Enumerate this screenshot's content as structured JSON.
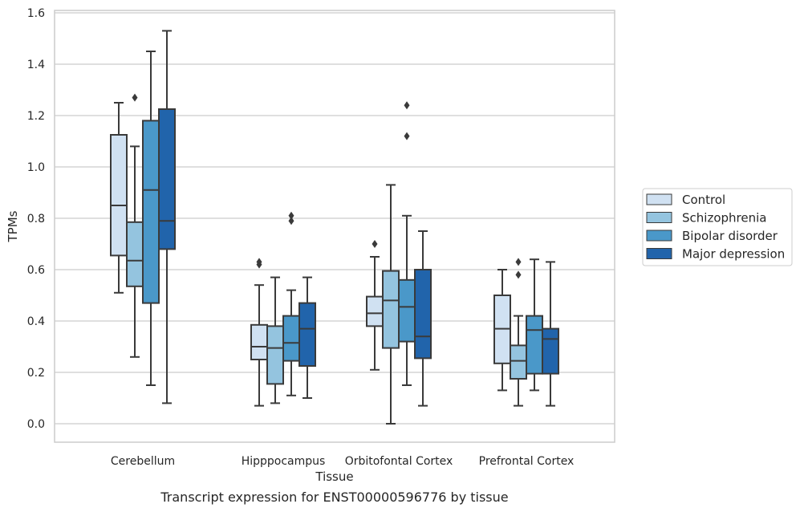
{
  "chart_data": {
    "type": "box",
    "title": "",
    "caption": "Transcript expression for ENST00000596776 by tissue",
    "xlabel": "Tissue",
    "ylabel": "TPMs",
    "ylim": [
      -0.07,
      1.61
    ],
    "yticks": [
      0.0,
      0.2,
      0.4,
      0.6,
      0.8,
      1.0,
      1.2,
      1.4,
      1.6
    ],
    "ytick_labels": [
      "0.0",
      "0.2",
      "0.4",
      "0.6",
      "0.8",
      "1.0",
      "1.2",
      "1.4",
      "1.6"
    ],
    "grid": "horizontal",
    "legend_position": "right",
    "categories": [
      "Cerebellum",
      "Hipppocampus",
      "Orbitofontal Cortex",
      "Prefrontal Cortex"
    ],
    "series": [
      {
        "name": "Control",
        "color": "#d0e1f2",
        "boxes": [
          {
            "whisker_low": 0.51,
            "q1": 0.655,
            "median": 0.85,
            "q3": 1.125,
            "whisker_high": 1.25,
            "outliers": []
          },
          {
            "whisker_low": 0.07,
            "q1": 0.25,
            "median": 0.3,
            "q3": 0.385,
            "whisker_high": 0.54,
            "outliers": [
              0.62,
              0.63
            ]
          },
          {
            "whisker_low": 0.21,
            "q1": 0.38,
            "median": 0.43,
            "q3": 0.495,
            "whisker_high": 0.65,
            "outliers": [
              0.7
            ]
          },
          {
            "whisker_low": 0.13,
            "q1": 0.235,
            "median": 0.37,
            "q3": 0.5,
            "whisker_high": 0.6,
            "outliers": []
          }
        ]
      },
      {
        "name": "Schizophrenia",
        "color": "#94c4df",
        "boxes": [
          {
            "whisker_low": 0.26,
            "q1": 0.535,
            "median": 0.635,
            "q3": 0.785,
            "whisker_high": 1.08,
            "outliers": [
              1.27
            ]
          },
          {
            "whisker_low": 0.08,
            "q1": 0.155,
            "median": 0.295,
            "q3": 0.38,
            "whisker_high": 0.57,
            "outliers": []
          },
          {
            "whisker_low": 0.0,
            "q1": 0.295,
            "median": 0.48,
            "q3": 0.595,
            "whisker_high": 0.93,
            "outliers": []
          },
          {
            "whisker_low": 0.07,
            "q1": 0.175,
            "median": 0.245,
            "q3": 0.305,
            "whisker_high": 0.42,
            "outliers": [
              0.58,
              0.63
            ]
          }
        ]
      },
      {
        "name": "Bipolar disorder",
        "color": "#4a98c9",
        "boxes": [
          {
            "whisker_low": 0.15,
            "q1": 0.47,
            "median": 0.91,
            "q3": 1.18,
            "whisker_high": 1.45,
            "outliers": []
          },
          {
            "whisker_low": 0.11,
            "q1": 0.245,
            "median": 0.315,
            "q3": 0.42,
            "whisker_high": 0.52,
            "outliers": [
              0.79,
              0.81
            ]
          },
          {
            "whisker_low": 0.15,
            "q1": 0.32,
            "median": 0.455,
            "q3": 0.56,
            "whisker_high": 0.81,
            "outliers": [
              1.12,
              1.24
            ]
          },
          {
            "whisker_low": 0.13,
            "q1": 0.195,
            "median": 0.365,
            "q3": 0.42,
            "whisker_high": 0.64,
            "outliers": []
          }
        ]
      },
      {
        "name": "Major depression",
        "color": "#2164ab",
        "boxes": [
          {
            "whisker_low": 0.08,
            "q1": 0.68,
            "median": 0.79,
            "q3": 1.225,
            "whisker_high": 1.53,
            "outliers": []
          },
          {
            "whisker_low": 0.1,
            "q1": 0.225,
            "median": 0.37,
            "q3": 0.47,
            "whisker_high": 0.57,
            "outliers": []
          },
          {
            "whisker_low": 0.07,
            "q1": 0.255,
            "median": 0.34,
            "q3": 0.6,
            "whisker_high": 0.75,
            "outliers": []
          },
          {
            "whisker_low": 0.07,
            "q1": 0.195,
            "median": 0.33,
            "q3": 0.37,
            "whisker_high": 0.63,
            "outliers": []
          }
        ]
      }
    ]
  }
}
